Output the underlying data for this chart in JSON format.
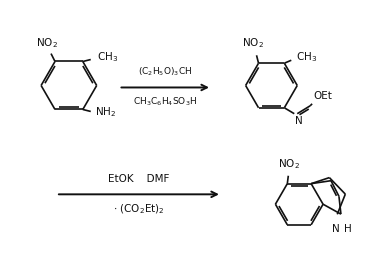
{
  "background_color": "#ffffff",
  "line_color": "#111111",
  "text_color": "#111111",
  "reagent1_line1": "(C$_2$H$_5$O)$_3$CH",
  "reagent1_line2": "CH$_3$C$_6$H$_4$SO$_3$H",
  "reagent2_line1": "EtOK    DMF",
  "reagent2_line2": "$\\cdot$ (CO$_2$Et)$_2$",
  "font_size": 7.5,
  "fig_width": 3.87,
  "fig_height": 2.63,
  "dpi": 100
}
